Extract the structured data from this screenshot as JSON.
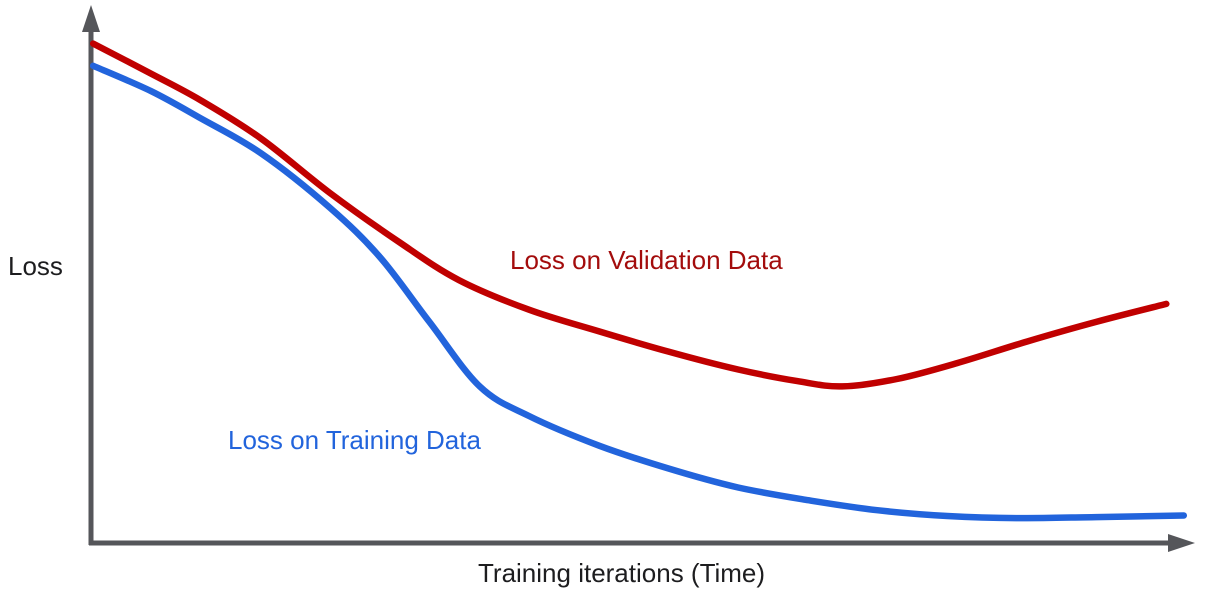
{
  "chart_data": {
    "type": "line",
    "title": "",
    "xlabel": "Training iterations (Time)",
    "ylabel": "Loss",
    "x_range": [
      0,
      100
    ],
    "y_range": [
      0,
      1
    ],
    "grid": false,
    "legend_position": "inline-annotations",
    "axes_color": "#55565a",
    "text_color": "#1d1d1f",
    "background": "#ffffff",
    "series": [
      {
        "name": "Loss on Validation Data",
        "color": "#c00000",
        "label_color": "#a30c0c",
        "points": [
          [
            0.2,
            0.944
          ],
          [
            5.5,
            0.887
          ],
          [
            10.0,
            0.837
          ],
          [
            15.5,
            0.765
          ],
          [
            21.8,
            0.662
          ],
          [
            28.2,
            0.568
          ],
          [
            33.6,
            0.497
          ],
          [
            40.0,
            0.441
          ],
          [
            46.4,
            0.4
          ],
          [
            52.7,
            0.362
          ],
          [
            59.1,
            0.328
          ],
          [
            64.5,
            0.306
          ],
          [
            68.6,
            0.296
          ],
          [
            73.6,
            0.31
          ],
          [
            79.1,
            0.34
          ],
          [
            85.5,
            0.381
          ],
          [
            91.8,
            0.418
          ],
          [
            98.2,
            0.452
          ]
        ]
      },
      {
        "name": "Loss on Training Data",
        "color": "#2264dc",
        "label_color": "#2264dc",
        "points": [
          [
            0.2,
            0.902
          ],
          [
            5.5,
            0.854
          ],
          [
            10.0,
            0.803
          ],
          [
            15.5,
            0.737
          ],
          [
            21.8,
            0.634
          ],
          [
            26.4,
            0.54
          ],
          [
            30.9,
            0.418
          ],
          [
            35.5,
            0.296
          ],
          [
            40.0,
            0.24
          ],
          [
            46.4,
            0.184
          ],
          [
            52.7,
            0.141
          ],
          [
            59.1,
            0.105
          ],
          [
            65.5,
            0.081
          ],
          [
            71.8,
            0.062
          ],
          [
            78.2,
            0.051
          ],
          [
            84.5,
            0.047
          ],
          [
            91.8,
            0.049
          ],
          [
            99.8,
            0.052
          ]
        ]
      }
    ]
  }
}
